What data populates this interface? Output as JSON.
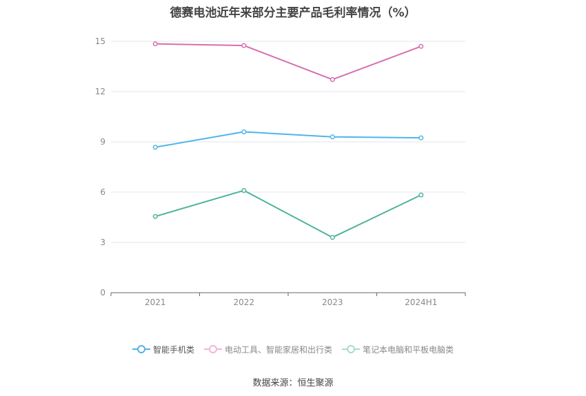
{
  "chart_data": {
    "type": "line",
    "title": "德赛电池近年来部分主要产品毛利率情况（%）",
    "categories": [
      "2021",
      "2022",
      "2023",
      "2024H1"
    ],
    "ylim": [
      0,
      15
    ],
    "yticks": [
      0,
      3,
      6,
      9,
      12,
      15
    ],
    "grid": true,
    "legend_position": "bottom",
    "series": [
      {
        "name": "智能手机类",
        "color": "#4fb5e8",
        "values": [
          8.68,
          9.6,
          9.3,
          9.24
        ],
        "legend_active": true
      },
      {
        "name": "电动工具、智能家居和出行类",
        "color": "#d56fae",
        "values": [
          14.85,
          14.75,
          12.72,
          14.7
        ],
        "legend_active": false
      },
      {
        "name": "笔记本电脑和平板电脑类",
        "color": "#4db39c",
        "values": [
          4.55,
          6.1,
          3.3,
          5.83
        ],
        "legend_active": false
      }
    ]
  },
  "legend_colors": {
    "smartphone_off": "#4fb5e8",
    "tools_off": "#f0b6d8",
    "laptop_off": "#a8dccd"
  },
  "source": "数据来源：恒生聚源"
}
